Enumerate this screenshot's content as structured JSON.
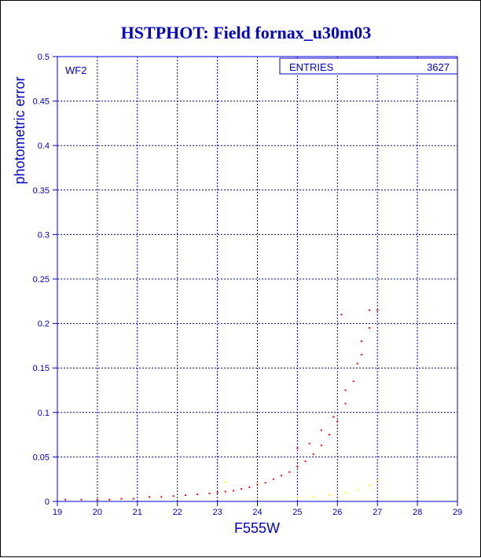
{
  "chart_data": {
    "type": "scatter",
    "title": "HSTPHOT: Field fornax_u30m03",
    "xlabel": "F555W",
    "ylabel": "photometric error",
    "panel_label": "WF2",
    "stats": {
      "label": "ENTRIES",
      "value": "3627"
    },
    "xlim": [
      19,
      29
    ],
    "ylim": [
      0,
      0.5
    ],
    "x_ticks": [
      19,
      20,
      21,
      22,
      23,
      24,
      25,
      26,
      27,
      28,
      29
    ],
    "y_ticks": [
      0,
      0.05,
      0.1,
      0.15,
      0.2,
      0.25,
      0.3,
      0.35,
      0.4,
      0.45,
      0.5
    ],
    "x_tick_labels": [
      "19",
      "20",
      "21",
      "22",
      "23",
      "24",
      "25",
      "26",
      "27",
      "28",
      "29"
    ],
    "y_tick_labels": [
      "0",
      "0.05",
      "0.1",
      "0.15",
      "0.2",
      "0.25",
      "0.3",
      "0.35",
      "0.4",
      "0.45",
      "0.5"
    ],
    "grid": true,
    "series": [
      {
        "color": "#ff0000",
        "points": [
          [
            19.2,
            0.002
          ],
          [
            19.6,
            0.002
          ],
          [
            20.0,
            0.002
          ],
          [
            20.3,
            0.002
          ],
          [
            20.6,
            0.003
          ],
          [
            20.9,
            0.003
          ],
          [
            21.3,
            0.005
          ],
          [
            21.6,
            0.005
          ],
          [
            21.9,
            0.006
          ],
          [
            22.2,
            0.007
          ],
          [
            22.5,
            0.008
          ],
          [
            22.8,
            0.009
          ],
          [
            23.0,
            0.01
          ],
          [
            23.2,
            0.011
          ],
          [
            23.4,
            0.012
          ],
          [
            23.6,
            0.014
          ],
          [
            23.8,
            0.016
          ],
          [
            24.0,
            0.019
          ],
          [
            24.2,
            0.021
          ],
          [
            24.4,
            0.025
          ],
          [
            24.6,
            0.029
          ],
          [
            24.8,
            0.033
          ],
          [
            25.0,
            0.039
          ],
          [
            25.2,
            0.045
          ],
          [
            25.4,
            0.053
          ],
          [
            25.6,
            0.063
          ],
          [
            25.8,
            0.075
          ],
          [
            26.0,
            0.09
          ],
          [
            26.2,
            0.11
          ],
          [
            26.4,
            0.135
          ],
          [
            26.6,
            0.165
          ],
          [
            26.8,
            0.195
          ],
          [
            27.0,
            0.215
          ],
          [
            25.0,
            0.06
          ],
          [
            25.3,
            0.065
          ],
          [
            25.6,
            0.08
          ],
          [
            25.9,
            0.095
          ],
          [
            26.2,
            0.125
          ],
          [
            26.5,
            0.155
          ],
          [
            26.8,
            0.215
          ],
          [
            26.1,
            0.21
          ],
          [
            26.6,
            0.18
          ]
        ]
      },
      {
        "color": "#ffff00",
        "points": [
          [
            23.2,
            0.022
          ],
          [
            25.0,
            0.004
          ],
          [
            25.4,
            0.005
          ],
          [
            25.8,
            0.007
          ],
          [
            26.2,
            0.01
          ],
          [
            26.5,
            0.013
          ],
          [
            26.8,
            0.018
          ],
          [
            27.0,
            0.024
          ]
        ]
      }
    ]
  }
}
